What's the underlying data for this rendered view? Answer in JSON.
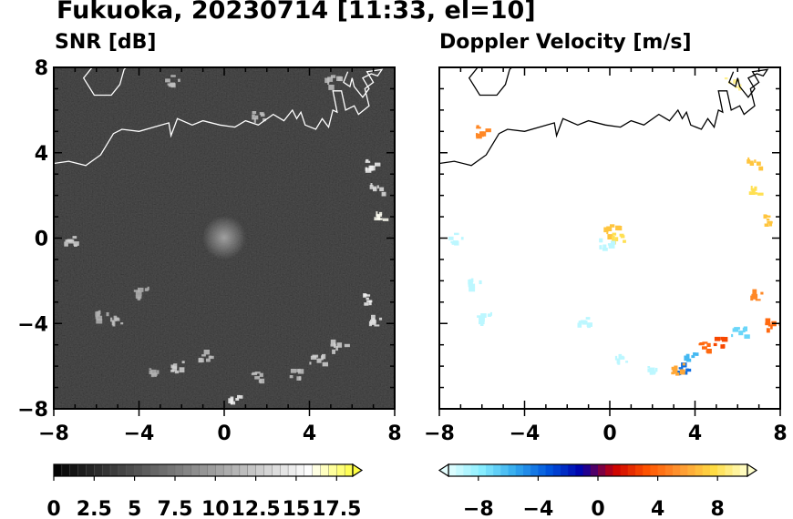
{
  "title": "Fukuoka, 20230714 [11:33, el=10]",
  "chart_data": [
    {
      "type": "heatmap",
      "title": "SNR [dB]",
      "xlim": [
        -8,
        8
      ],
      "ylim": [
        -8,
        8
      ],
      "x_ticks": [
        "−8",
        "−4",
        "0",
        "4",
        "8"
      ],
      "y_ticks": [
        "8",
        "4",
        "0",
        "−4",
        "−8"
      ],
      "background_color": "#111111",
      "colorbar": {
        "ticks": [
          "0",
          "2.5",
          "5",
          "7.5",
          "10",
          "12.5",
          "15",
          "17.5"
        ],
        "range": [
          0,
          18.5
        ],
        "extend": "max",
        "colors": [
          "#000000",
          "#2a2a2a",
          "#555555",
          "#808080",
          "#aaaaaa",
          "#d4d4d4",
          "#ffffff",
          "#ffff44"
        ]
      },
      "echoes": [
        {
          "x": 6.9,
          "y": 3.5,
          "v": 15
        },
        {
          "x": 7.1,
          "y": 2.4,
          "v": 14
        },
        {
          "x": 7.3,
          "y": 1.1,
          "v": 16
        },
        {
          "x": 6.8,
          "y": -2.8,
          "v": 15
        },
        {
          "x": 7.1,
          "y": -3.8,
          "v": 14
        },
        {
          "x": 5.3,
          "y": -5.0,
          "v": 13
        },
        {
          "x": 4.3,
          "y": -5.6,
          "v": 13
        },
        {
          "x": 3.3,
          "y": -6.3,
          "v": 12
        },
        {
          "x": 1.5,
          "y": -6.5,
          "v": 12
        },
        {
          "x": 0.5,
          "y": -7.4,
          "v": 15
        },
        {
          "x": -1.0,
          "y": -5.4,
          "v": 12
        },
        {
          "x": -2.3,
          "y": -6.0,
          "v": 13
        },
        {
          "x": -3.2,
          "y": -6.2,
          "v": 11
        },
        {
          "x": -5.0,
          "y": -3.8,
          "v": 12
        },
        {
          "x": -5.8,
          "y": -3.6,
          "v": 11
        },
        {
          "x": -3.9,
          "y": -2.5,
          "v": 11
        },
        {
          "x": -7.2,
          "y": -0.1,
          "v": 13
        },
        {
          "x": -2.5,
          "y": 7.4,
          "v": 12
        },
        {
          "x": 5.0,
          "y": 7.4,
          "v": 12
        },
        {
          "x": 1.6,
          "y": 5.8,
          "v": 12
        }
      ]
    },
    {
      "type": "heatmap",
      "title": "Doppler Velocity [m/s]",
      "xlim": [
        -8,
        8
      ],
      "ylim": [
        -8,
        8
      ],
      "x_ticks": [
        "−8",
        "−4",
        "0",
        "4",
        "8"
      ],
      "y_ticks": [
        "8",
        "4",
        "0",
        "−4",
        "−8"
      ],
      "background_color": "#ffffff",
      "colorbar": {
        "ticks": [
          "−8",
          "−4",
          "0",
          "4",
          "8"
        ],
        "range": [
          -10,
          10
        ],
        "extend": "both",
        "colors": [
          "#e6ffff",
          "#88eeff",
          "#33aaee",
          "#0055dd",
          "#0000aa",
          "#cc0000",
          "#ff5500",
          "#ff9933",
          "#ffdd44",
          "#ffffcc"
        ]
      },
      "echoes": [
        {
          "x": -6.0,
          "y": 5.1,
          "v": 5
        },
        {
          "x": 6.7,
          "y": 3.6,
          "v": 7
        },
        {
          "x": 6.8,
          "y": 2.3,
          "v": 8
        },
        {
          "x": 7.5,
          "y": 0.9,
          "v": 7
        },
        {
          "x": 6.9,
          "y": -2.6,
          "v": 5
        },
        {
          "x": 7.6,
          "y": -4.0,
          "v": 4
        },
        {
          "x": 6.0,
          "y": -4.3,
          "v": -7
        },
        {
          "x": 5.1,
          "y": -4.8,
          "v": 3
        },
        {
          "x": 4.4,
          "y": -5.1,
          "v": 4
        },
        {
          "x": 3.8,
          "y": -5.4,
          "v": -6
        },
        {
          "x": 3.3,
          "y": -6.0,
          "v": -4
        },
        {
          "x": 3.1,
          "y": -6.1,
          "v": 6
        },
        {
          "x": 2.1,
          "y": -6.1,
          "v": -9
        },
        {
          "x": 0.6,
          "y": -5.6,
          "v": -9
        },
        {
          "x": -6.4,
          "y": -2.1,
          "v": -9
        },
        {
          "x": -5.9,
          "y": -3.7,
          "v": -9
        },
        {
          "x": -1.2,
          "y": -3.9,
          "v": -9
        },
        {
          "x": -7.3,
          "y": 0.0,
          "v": -9
        },
        {
          "x": 0.0,
          "y": 0.4,
          "v": 7
        },
        {
          "x": 0.4,
          "y": 0.1,
          "v": 8
        },
        {
          "x": -0.2,
          "y": -0.2,
          "v": -9
        },
        {
          "x": 5.7,
          "y": 7.3,
          "v": 9
        }
      ]
    }
  ]
}
